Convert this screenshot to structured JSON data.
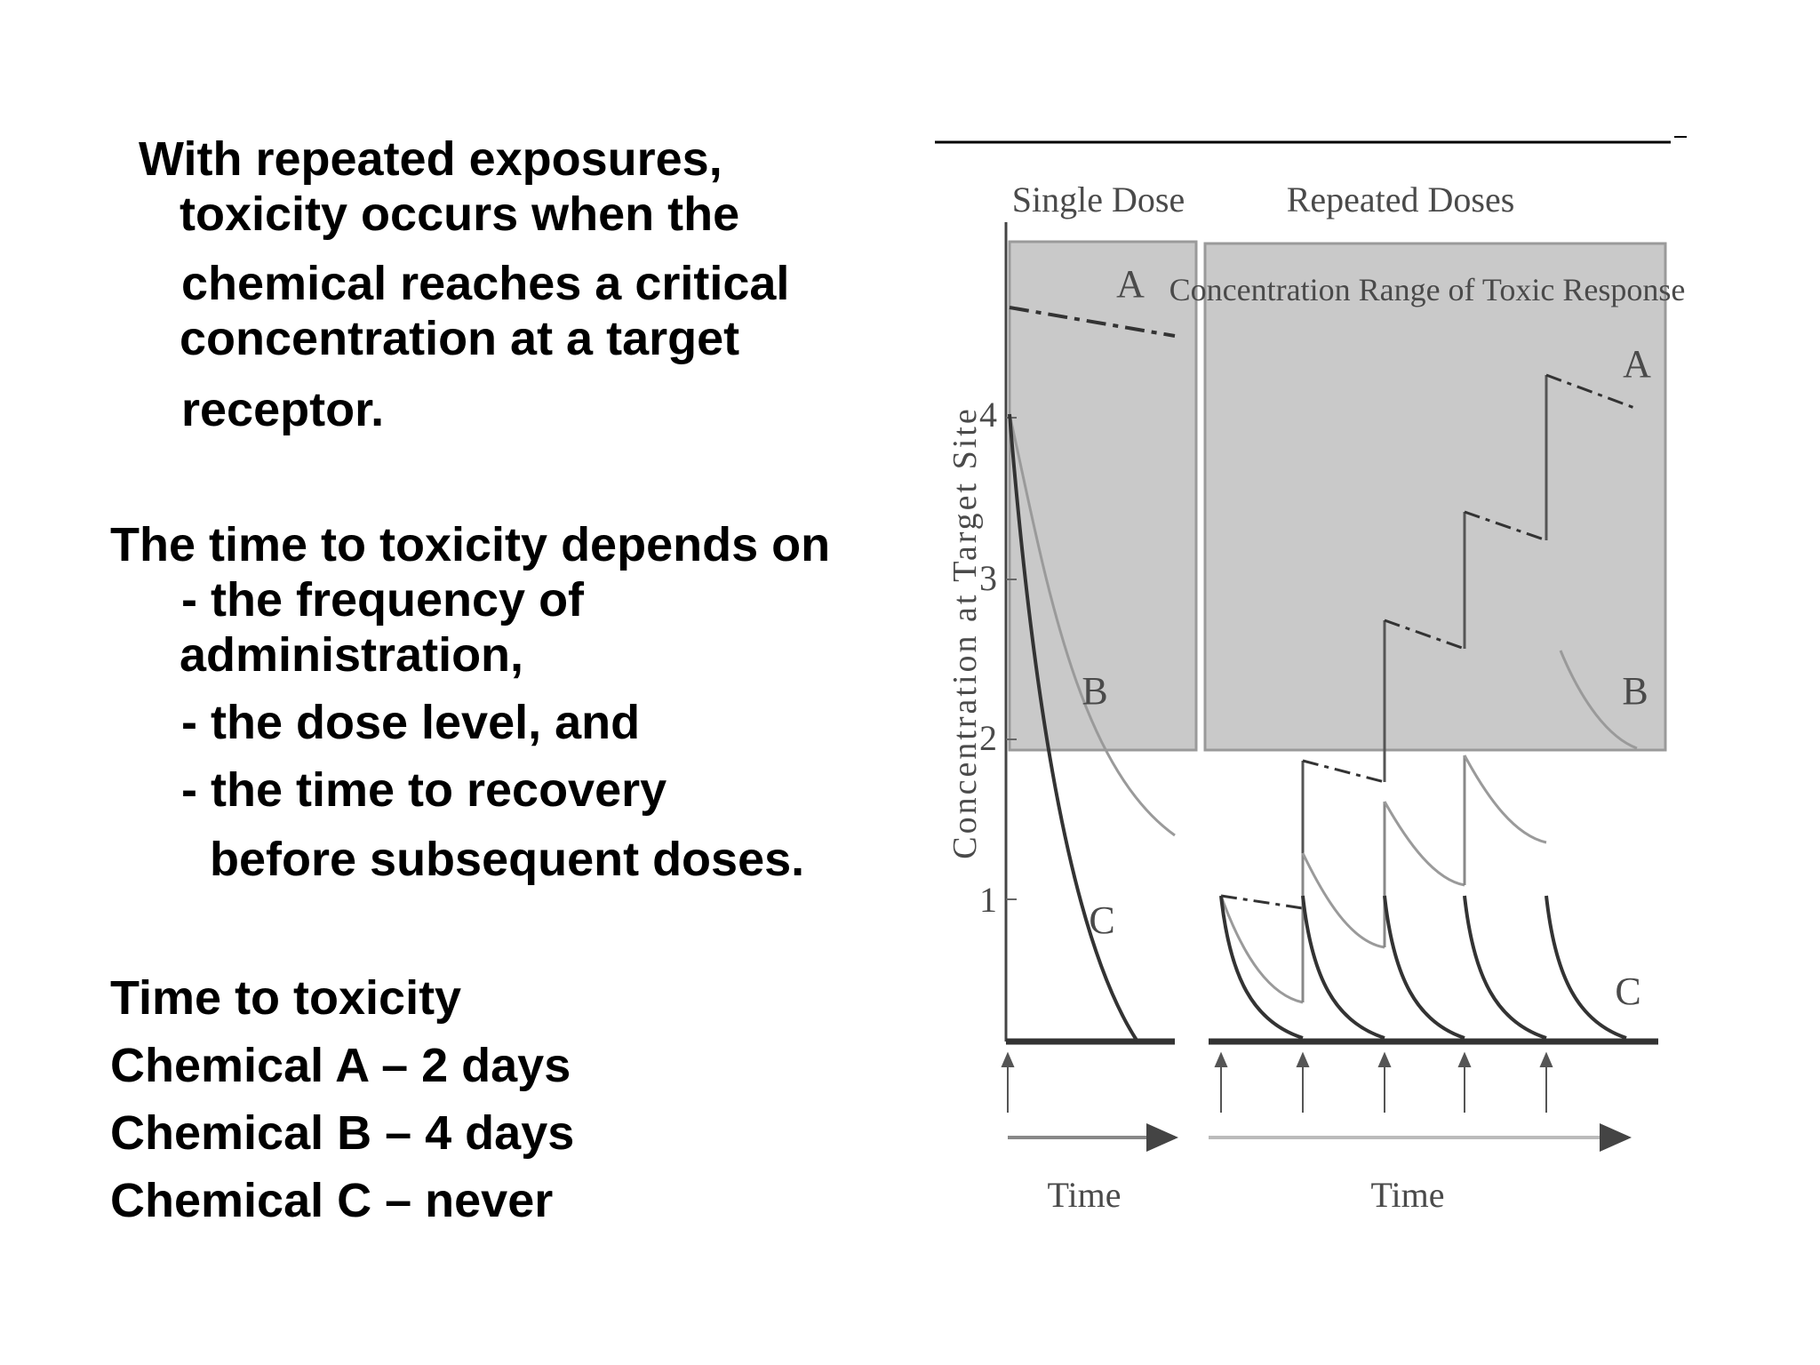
{
  "slide": {
    "intro_lines": [
      "With repeated exposures,",
      "toxicity occurs when the",
      "chemical reaches a critical",
      "concentration at a target",
      "receptor."
    ],
    "depends_lines": [
      "The time to toxicity depends on",
      "- the frequency of",
      "administration,",
      "- the dose level, and",
      "- the time to recovery",
      "before subsequent doses."
    ],
    "summary_lines": [
      "Time to toxicity",
      "Chemical A – 2 days",
      "Chemical B – 4 days",
      "Chemical C – never"
    ]
  },
  "figure": {
    "single_dose_title": "Single Dose",
    "repeated_doses_title": "Repeated Doses",
    "toxic_range_label": "Concentration Range of Toxic Response",
    "y_axis_label": "Concentration at Target Site",
    "y_ticks": [
      "1",
      "2",
      "3",
      "4"
    ],
    "x_axis_label_single": "Time",
    "x_axis_label_repeated": "Time",
    "curve_labels": {
      "single_A": "A",
      "single_B": "B",
      "single_C": "C",
      "repeated_A": "A",
      "repeated_B": "B",
      "repeated_C": "C"
    },
    "colors": {
      "toxic_band": "#c9c9c9",
      "curve_gray": "#9a9a9a",
      "curve_dark": "#333333"
    }
  }
}
